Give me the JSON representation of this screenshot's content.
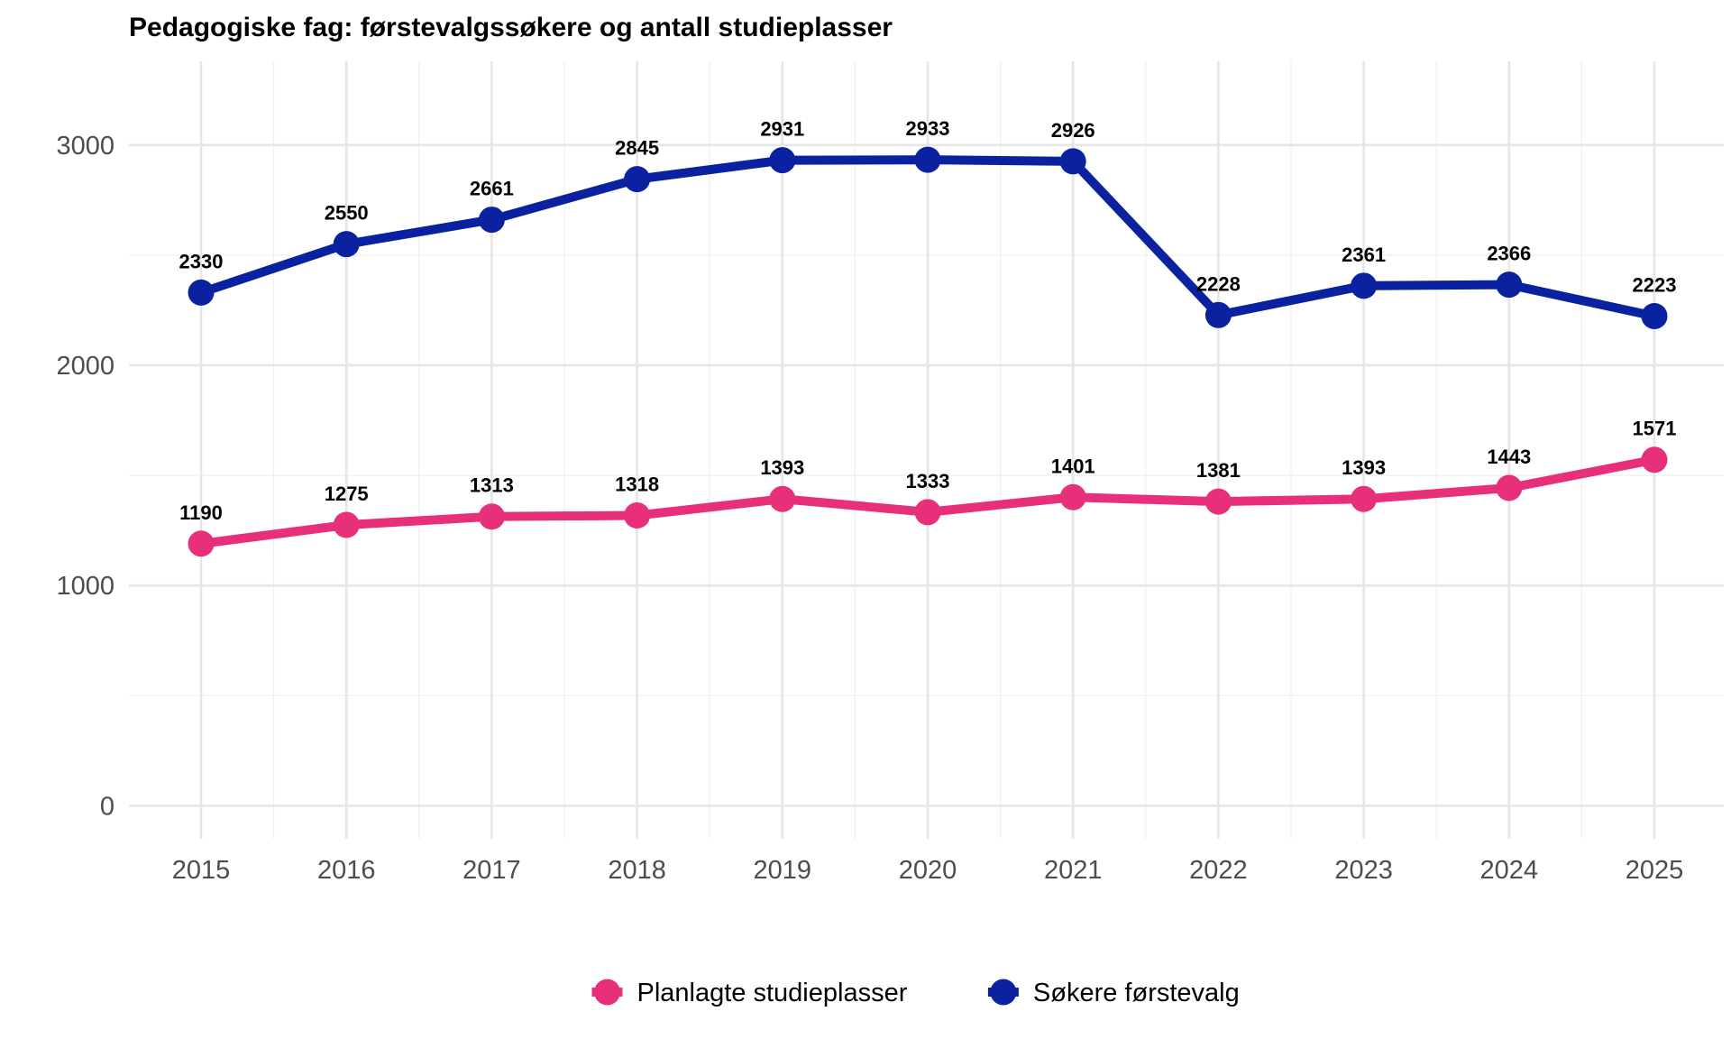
{
  "chart_data": {
    "type": "line",
    "title": "Pedagogiske fag: førstevalgssøkere og antall studieplasser",
    "xlabel": "",
    "ylabel": "",
    "x": [
      "2015",
      "2016",
      "2017",
      "2018",
      "2019",
      "2020",
      "2021",
      "2022",
      "2023",
      "2024",
      "2025"
    ],
    "ylim": [
      -150,
      3380
    ],
    "yticks": [
      0,
      1000,
      2000,
      3000
    ],
    "grid": true,
    "legend_position": "bottom",
    "series": [
      {
        "name": "Søkere førstevalg",
        "color": "#0a22a0",
        "values": [
          2330,
          2550,
          2661,
          2845,
          2931,
          2933,
          2926,
          2228,
          2361,
          2366,
          2223
        ]
      },
      {
        "name": "Planlagte studieplasser",
        "color": "#e8307a",
        "values": [
          1190,
          1275,
          1313,
          1318,
          1393,
          1333,
          1401,
          1381,
          1393,
          1443,
          1571
        ]
      }
    ],
    "legend_order": [
      "Planlagte studieplasser",
      "Søkere førstevalg"
    ]
  }
}
